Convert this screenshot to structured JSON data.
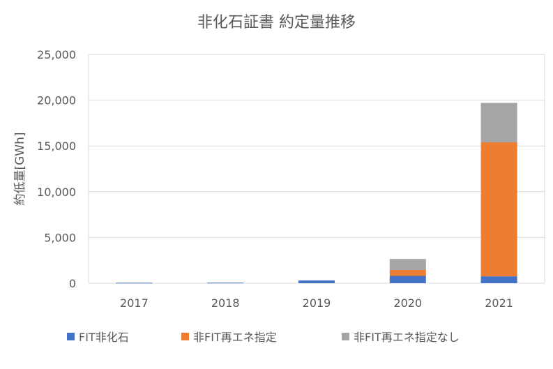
{
  "chart_data": {
    "type": "bar",
    "stacked": true,
    "title": "非化石証書 約定量推移",
    "ylabel": "約低量[GWh]",
    "xlabel": "",
    "categories": [
      "2017",
      "2018",
      "2019",
      "2020",
      "2021"
    ],
    "ylim": [
      0,
      25000
    ],
    "yticks": [
      0,
      5000,
      10000,
      15000,
      20000,
      25000
    ],
    "ytick_labels": [
      "0",
      "5,000",
      "10,000",
      "15,000",
      "20,000",
      "25,000"
    ],
    "grid": true,
    "legend_position": "bottom",
    "series": [
      {
        "name": "FIT非化石",
        "color": "#4472C4",
        "values": [
          50,
          60,
          300,
          800,
          750
        ]
      },
      {
        "name": "非FIT再エネ指定",
        "color": "#ED7D31",
        "values": [
          0,
          0,
          0,
          650,
          14650
        ]
      },
      {
        "name": "非FIT再エネ指定なし",
        "color": "#A5A5A5",
        "values": [
          0,
          0,
          0,
          1200,
          4300
        ]
      }
    ]
  }
}
